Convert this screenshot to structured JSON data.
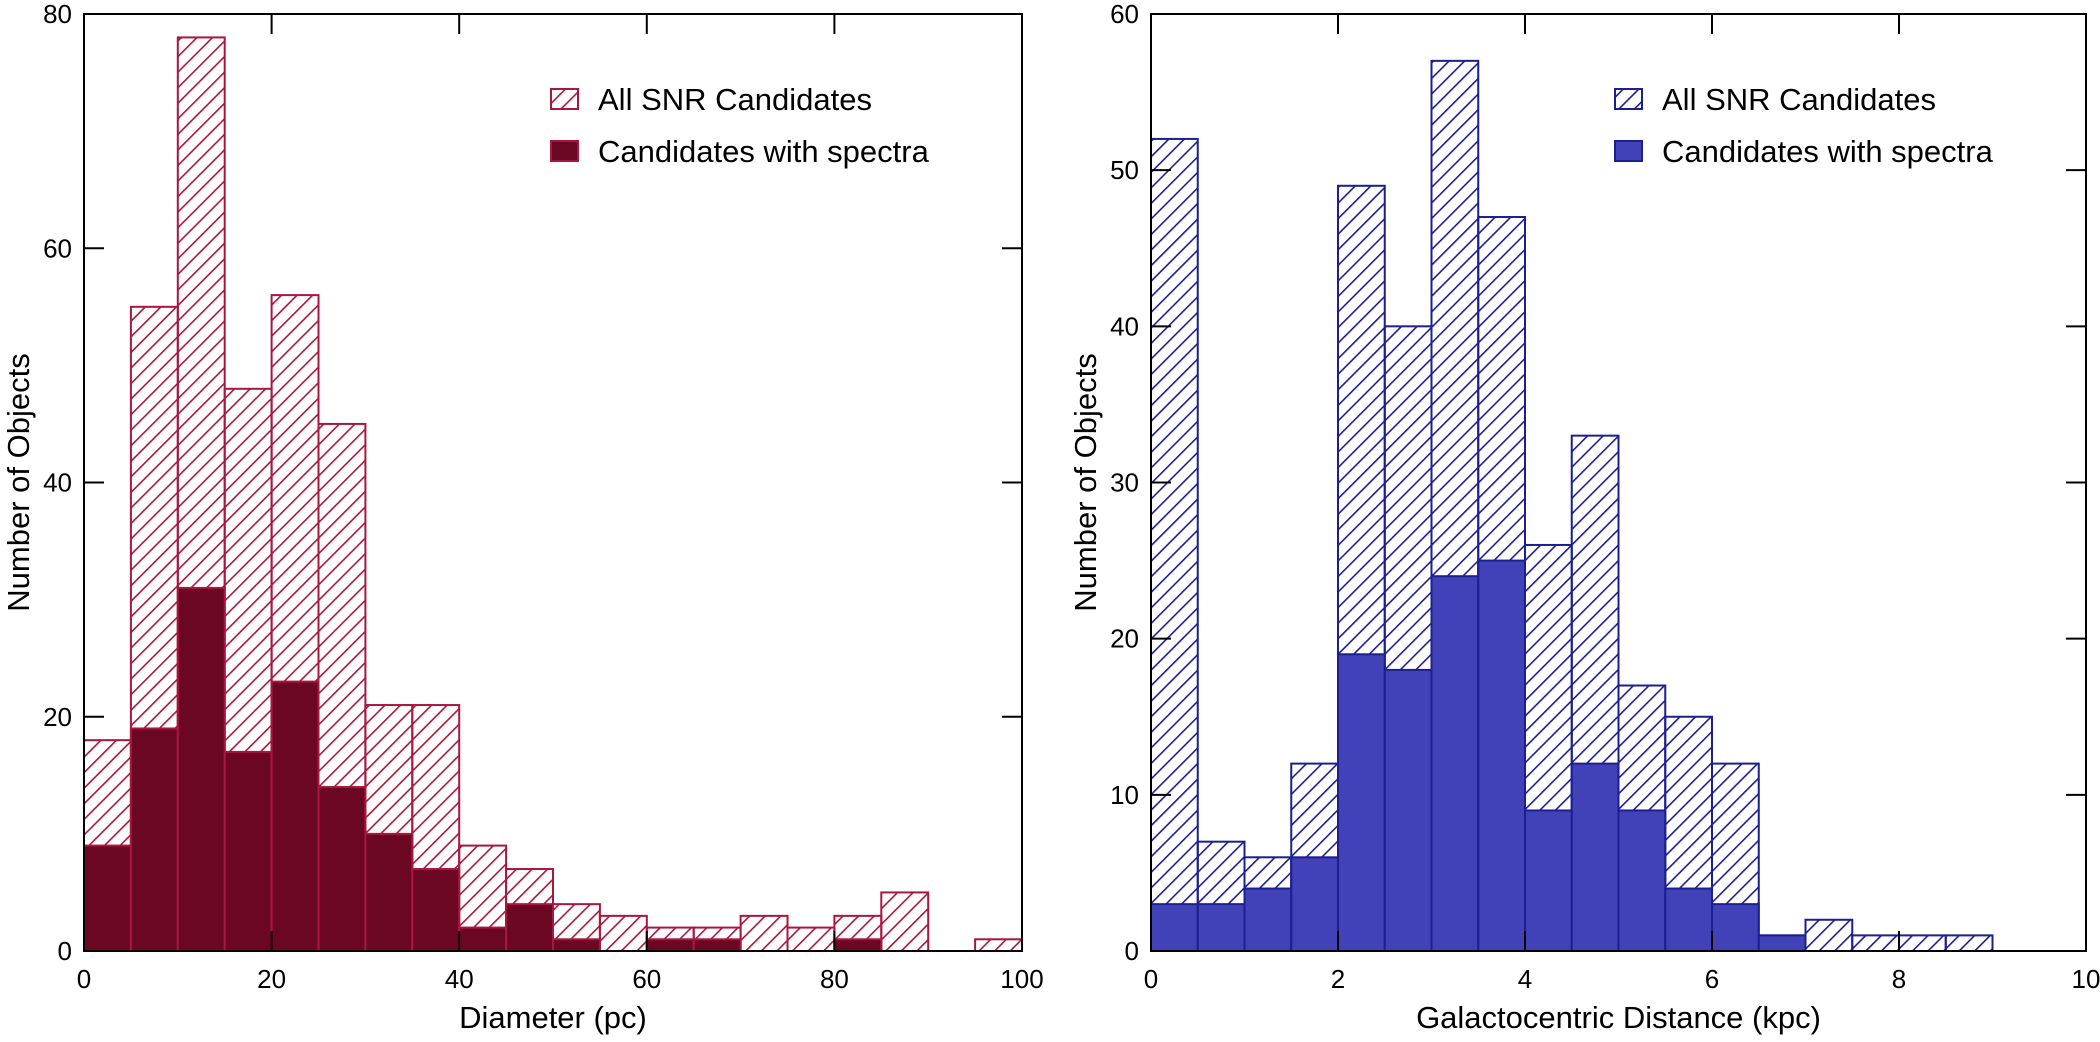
{
  "chart_data": [
    {
      "type": "bar",
      "title": "",
      "xlabel": "Diameter (pc)",
      "ylabel": "Number of Objects",
      "xlim": [
        0,
        100
      ],
      "ylim": [
        0,
        80
      ],
      "xticks": [
        0,
        20,
        40,
        60,
        80,
        100
      ],
      "yticks": [
        0,
        20,
        40,
        60,
        80
      ],
      "bin_width": 5,
      "bin_starts": [
        0,
        5,
        10,
        15,
        20,
        25,
        30,
        35,
        40,
        45,
        50,
        55,
        60,
        65,
        70,
        75,
        80,
        85,
        90,
        95
      ],
      "legend_position": "top-right",
      "colors": {
        "accent": "#a8173f",
        "fill": "#6b0723"
      },
      "series": [
        {
          "name": "All SNR Candidates",
          "style": "hatched",
          "values": [
            18,
            55,
            78,
            48,
            56,
            45,
            21,
            21,
            9,
            7,
            4,
            3,
            2,
            2,
            3,
            2,
            3,
            5,
            0,
            1
          ]
        },
        {
          "name": "Candidates with spectra",
          "style": "solid",
          "values": [
            9,
            19,
            31,
            17,
            23,
            14,
            10,
            7,
            2,
            4,
            1,
            0,
            1,
            1,
            0,
            0,
            1,
            0,
            0,
            0
          ]
        }
      ]
    },
    {
      "type": "bar",
      "title": "",
      "xlabel": "Galactocentric Distance (kpc)",
      "ylabel": "Number of Objects",
      "xlim": [
        0,
        10
      ],
      "ylim": [
        0,
        60
      ],
      "xticks": [
        0,
        2,
        4,
        6,
        8,
        10
      ],
      "yticks": [
        0,
        10,
        20,
        30,
        40,
        50,
        60
      ],
      "bin_width": 0.5,
      "bin_starts": [
        0,
        0.5,
        1,
        1.5,
        2,
        2.5,
        3,
        3.5,
        4,
        4.5,
        5,
        5.5,
        6,
        6.5,
        7,
        7.5,
        8,
        8.5,
        9,
        9.5
      ],
      "legend_position": "top-right",
      "colors": {
        "accent": "#1c1f8f",
        "fill": "#4141b8"
      },
      "series": [
        {
          "name": "All SNR Candidates",
          "style": "hatched",
          "values": [
            52,
            7,
            6,
            12,
            49,
            40,
            57,
            47,
            26,
            33,
            17,
            15,
            12,
            1,
            2,
            1,
            1,
            1,
            0,
            0
          ]
        },
        {
          "name": "Candidates with spectra",
          "style": "solid",
          "values": [
            3,
            3,
            4,
            6,
            19,
            18,
            24,
            25,
            9,
            12,
            9,
            4,
            3,
            1,
            0,
            0,
            0,
            0,
            0,
            0
          ]
        }
      ]
    }
  ]
}
